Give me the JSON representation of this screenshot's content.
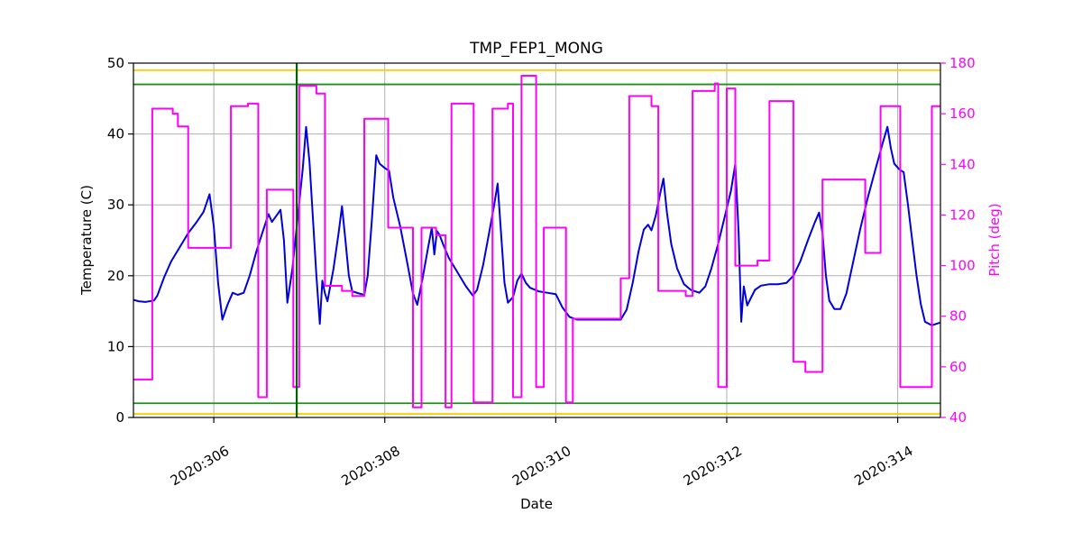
{
  "chart_data": {
    "type": "line",
    "title": "TMP_FEP1_MONG",
    "xlabel": "Date",
    "ylabel_left": "Temperature (C)",
    "ylabel_right": "Pitch (deg)",
    "grid": true,
    "legend": "none",
    "x_range": [
      305.06,
      314.5
    ],
    "y_left_range": [
      0,
      50
    ],
    "y_right_range": [
      40,
      180
    ],
    "x_ticks": [
      306,
      308,
      310,
      312,
      314
    ],
    "x_tick_labels": [
      "2020:306",
      "2020:308",
      "2020:310",
      "2020:312",
      "2020:314"
    ],
    "y_left_ticks": [
      0,
      10,
      20,
      30,
      40,
      50
    ],
    "y_left_tick_labels": [
      "0",
      "10",
      "20",
      "30",
      "40",
      "50"
    ],
    "y_right_ticks": [
      40,
      60,
      80,
      100,
      120,
      140,
      160,
      180
    ],
    "y_right_tick_labels": [
      "40",
      "60",
      "80",
      "100",
      "120",
      "140",
      "160",
      "180"
    ],
    "limit_lines": {
      "yellow_high": 49,
      "green_high": 47,
      "green_low": 2,
      "yellow_low": 0.5
    },
    "vline_x": 306.97,
    "colors": {
      "temperature": "#0000dd",
      "pitch": "#ff00ff",
      "yellow": "#ffcc00",
      "green": "#228b22",
      "vline": "#006400",
      "grid": "#b0b0b0",
      "frame": "#000000"
    },
    "series": [
      {
        "name": "Temperature (C)",
        "axis": "left",
        "style": "line",
        "color": "#0000dd"
      },
      {
        "name": "Pitch (deg)",
        "axis": "right",
        "style": "step",
        "color": "#ff00ff"
      }
    ],
    "temperature_series": [
      [
        305.06,
        16.6
      ],
      [
        305.12,
        16.4
      ],
      [
        305.2,
        16.3
      ],
      [
        305.3,
        16.5
      ],
      [
        305.34,
        17.2
      ],
      [
        305.42,
        19.8
      ],
      [
        305.5,
        22
      ],
      [
        305.6,
        24
      ],
      [
        305.7,
        26
      ],
      [
        305.8,
        27.6
      ],
      [
        305.88,
        29
      ],
      [
        305.95,
        31.5
      ],
      [
        306.0,
        27
      ],
      [
        306.05,
        19
      ],
      [
        306.1,
        13.8
      ],
      [
        306.16,
        15.9
      ],
      [
        306.22,
        17.6
      ],
      [
        306.28,
        17.3
      ],
      [
        306.35,
        17.6
      ],
      [
        306.42,
        20
      ],
      [
        306.5,
        23.5
      ],
      [
        306.58,
        26.5
      ],
      [
        306.64,
        28.7
      ],
      [
        306.68,
        27.6
      ],
      [
        306.74,
        28.6
      ],
      [
        306.78,
        29.3
      ],
      [
        306.82,
        25
      ],
      [
        306.86,
        16.2
      ],
      [
        306.92,
        21
      ],
      [
        306.98,
        28
      ],
      [
        307.04,
        35
      ],
      [
        307.08,
        41
      ],
      [
        307.12,
        36
      ],
      [
        307.16,
        28
      ],
      [
        307.2,
        20
      ],
      [
        307.24,
        13.2
      ],
      [
        307.27,
        19.3
      ],
      [
        307.3,
        17.5
      ],
      [
        307.33,
        16.4
      ],
      [
        307.4,
        21
      ],
      [
        307.46,
        26
      ],
      [
        307.5,
        29.8
      ],
      [
        307.54,
        25
      ],
      [
        307.58,
        20
      ],
      [
        307.62,
        17.8
      ],
      [
        307.7,
        17.5
      ],
      [
        307.76,
        17.3
      ],
      [
        307.8,
        20
      ],
      [
        307.85,
        28
      ],
      [
        307.9,
        37
      ],
      [
        307.94,
        35.8
      ],
      [
        308.0,
        35.2
      ],
      [
        308.05,
        34.8
      ],
      [
        308.1,
        31
      ],
      [
        308.18,
        27
      ],
      [
        308.26,
        22
      ],
      [
        308.33,
        17.5
      ],
      [
        308.38,
        15.9
      ],
      [
        308.44,
        19.5
      ],
      [
        308.5,
        23.5
      ],
      [
        308.55,
        26.8
      ],
      [
        308.58,
        23
      ],
      [
        308.61,
        26.3
      ],
      [
        308.64,
        25.8
      ],
      [
        308.68,
        24.5
      ],
      [
        308.75,
        22.5
      ],
      [
        308.85,
        20.5
      ],
      [
        308.95,
        18.5
      ],
      [
        309.03,
        17.2
      ],
      [
        309.08,
        18
      ],
      [
        309.15,
        21.5
      ],
      [
        309.22,
        26
      ],
      [
        309.28,
        30
      ],
      [
        309.32,
        33
      ],
      [
        309.36,
        26
      ],
      [
        309.4,
        19
      ],
      [
        309.44,
        16.2
      ],
      [
        309.5,
        17
      ],
      [
        309.55,
        19.3
      ],
      [
        309.6,
        20.3
      ],
      [
        309.65,
        19
      ],
      [
        309.7,
        18.3
      ],
      [
        309.8,
        17.8
      ],
      [
        309.9,
        17.6
      ],
      [
        310.0,
        17.4
      ],
      [
        310.08,
        15.5
      ],
      [
        310.16,
        14.2
      ],
      [
        310.25,
        13.8
      ],
      [
        310.45,
        13.8
      ],
      [
        310.65,
        13.8
      ],
      [
        310.76,
        13.8
      ],
      [
        310.83,
        15.2
      ],
      [
        310.9,
        19
      ],
      [
        310.97,
        23.5
      ],
      [
        311.03,
        26.5
      ],
      [
        311.08,
        27.2
      ],
      [
        311.12,
        26.4
      ],
      [
        311.17,
        28.5
      ],
      [
        311.22,
        31.5
      ],
      [
        311.26,
        33.7
      ],
      [
        311.3,
        29
      ],
      [
        311.35,
        24.5
      ],
      [
        311.42,
        21
      ],
      [
        311.5,
        18.8
      ],
      [
        311.58,
        18
      ],
      [
        311.68,
        17.6
      ],
      [
        311.75,
        18.5
      ],
      [
        311.82,
        21
      ],
      [
        311.9,
        24.5
      ],
      [
        311.98,
        28.5
      ],
      [
        312.05,
        32
      ],
      [
        312.1,
        35.8
      ],
      [
        312.14,
        26
      ],
      [
        312.17,
        13.5
      ],
      [
        312.2,
        18.5
      ],
      [
        312.24,
        15.8
      ],
      [
        312.28,
        16.8
      ],
      [
        312.33,
        18
      ],
      [
        312.4,
        18.6
      ],
      [
        312.5,
        18.8
      ],
      [
        312.6,
        18.8
      ],
      [
        312.7,
        19
      ],
      [
        312.78,
        20
      ],
      [
        312.86,
        22
      ],
      [
        312.95,
        25
      ],
      [
        313.03,
        27.5
      ],
      [
        313.08,
        28.9
      ],
      [
        313.12,
        26
      ],
      [
        313.16,
        20
      ],
      [
        313.2,
        16.5
      ],
      [
        313.26,
        15.3
      ],
      [
        313.33,
        15.3
      ],
      [
        313.4,
        17.5
      ],
      [
        313.48,
        22
      ],
      [
        313.56,
        26.5
      ],
      [
        313.65,
        31
      ],
      [
        313.74,
        35
      ],
      [
        313.82,
        38.5
      ],
      [
        313.88,
        41
      ],
      [
        313.92,
        38
      ],
      [
        313.96,
        35.8
      ],
      [
        314.02,
        35
      ],
      [
        314.07,
        34.6
      ],
      [
        314.12,
        30
      ],
      [
        314.17,
        25
      ],
      [
        314.22,
        20
      ],
      [
        314.27,
        16
      ],
      [
        314.32,
        13.5
      ],
      [
        314.4,
        13
      ],
      [
        314.5,
        13.4
      ]
    ],
    "pitch_steps": [
      [
        305.06,
        55
      ],
      [
        305.28,
        162
      ],
      [
        305.52,
        160
      ],
      [
        305.58,
        155
      ],
      [
        305.7,
        107
      ],
      [
        306.2,
        163
      ],
      [
        306.4,
        164
      ],
      [
        306.52,
        48
      ],
      [
        306.62,
        130
      ],
      [
        306.93,
        52
      ],
      [
        307.0,
        171
      ],
      [
        307.2,
        168
      ],
      [
        307.3,
        92
      ],
      [
        307.5,
        90
      ],
      [
        307.62,
        88
      ],
      [
        307.76,
        158
      ],
      [
        308.04,
        115
      ],
      [
        308.33,
        44
      ],
      [
        308.43,
        115
      ],
      [
        308.6,
        112
      ],
      [
        308.71,
        44
      ],
      [
        308.78,
        164
      ],
      [
        309.04,
        46
      ],
      [
        309.26,
        162
      ],
      [
        309.44,
        164
      ],
      [
        309.5,
        48
      ],
      [
        309.6,
        175
      ],
      [
        309.77,
        52
      ],
      [
        309.86,
        115
      ],
      [
        310.12,
        46
      ],
      [
        310.2,
        79
      ],
      [
        310.76,
        95
      ],
      [
        310.86,
        167
      ],
      [
        311.12,
        163
      ],
      [
        311.2,
        90
      ],
      [
        311.52,
        88
      ],
      [
        311.6,
        169
      ],
      [
        311.86,
        172
      ],
      [
        311.9,
        52
      ],
      [
        312.0,
        170
      ],
      [
        312.1,
        100
      ],
      [
        312.36,
        102
      ],
      [
        312.5,
        165
      ],
      [
        312.78,
        62
      ],
      [
        312.92,
        58
      ],
      [
        313.12,
        134
      ],
      [
        313.62,
        105
      ],
      [
        313.8,
        163
      ],
      [
        314.03,
        52
      ],
      [
        314.4,
        163
      ]
    ]
  }
}
